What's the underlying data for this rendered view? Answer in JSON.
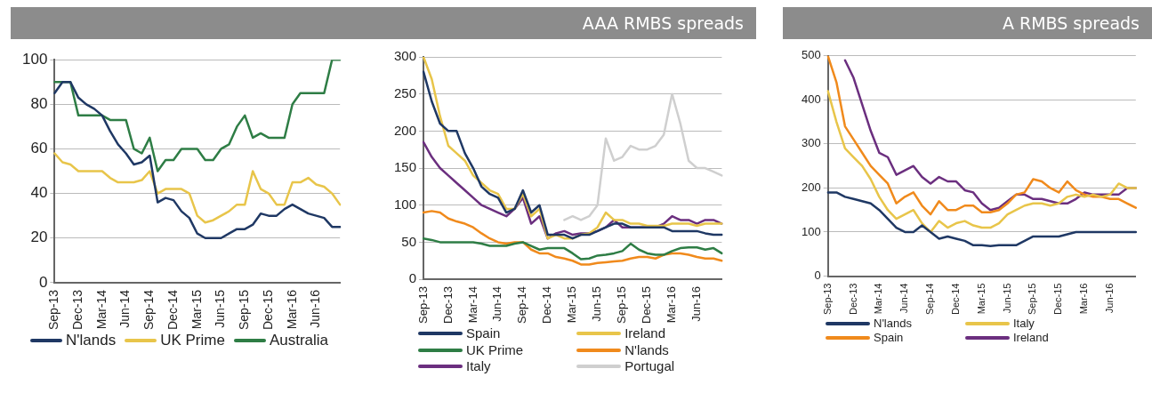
{
  "chart_data": [
    {
      "type": "line",
      "categories": [
        "Sep-13",
        null,
        null,
        "Dec-13",
        null,
        null,
        "Mar-14",
        null,
        null,
        "Jun-14",
        null,
        null,
        "Sep-14",
        null,
        null,
        "Dec-14",
        null,
        null,
        "Mar-15",
        null,
        null,
        "Jun-15",
        null,
        null,
        "Sep-15",
        null,
        null,
        "Dec-15",
        null,
        null,
        "Mar-16",
        null,
        null,
        "Jun-16",
        null,
        null,
        null
      ],
      "series": [
        {
          "name": "N'lands",
          "color": "#1f3864",
          "values": [
            85,
            90,
            90,
            83,
            80,
            78,
            75,
            68,
            62,
            58,
            53,
            54,
            57,
            36,
            38,
            37,
            32,
            29,
            22,
            20,
            20,
            20,
            22,
            24,
            24,
            26,
            31,
            30,
            30,
            33,
            35,
            33,
            31,
            30,
            29,
            25,
            25
          ]
        },
        {
          "name": "UK Prime",
          "color": "#e8c54a",
          "values": [
            58,
            54,
            53,
            50,
            50,
            50,
            50,
            47,
            45,
            45,
            45,
            46,
            50,
            40,
            42,
            42,
            42,
            40,
            30,
            27,
            28,
            30,
            32,
            35,
            35,
            50,
            42,
            40,
            35,
            35,
            45,
            45,
            47,
            44,
            43,
            40,
            35
          ]
        },
        {
          "name": "Australia",
          "color": "#2e7d45",
          "values": [
            90,
            90,
            90,
            75,
            75,
            75,
            75,
            73,
            73,
            73,
            60,
            58,
            65,
            50,
            55,
            55,
            60,
            60,
            60,
            55,
            55,
            60,
            62,
            70,
            75,
            65,
            67,
            65,
            65,
            65,
            80,
            85,
            85,
            85,
            85,
            100,
            100
          ]
        }
      ],
      "ylim": [
        0,
        100
      ],
      "yticks": [
        0,
        20,
        40,
        60,
        80,
        100
      ],
      "grid": "y",
      "legend": "bottom",
      "marker": "none",
      "line_style": "solid"
    },
    {
      "type": "line",
      "title": "AAA RMBS spreads",
      "categories": [
        "Sep-13",
        null,
        null,
        "Dec-13",
        null,
        null,
        "Mar-14",
        null,
        null,
        "Jun-14",
        null,
        null,
        "Sep-14",
        null,
        null,
        "Dec-14",
        null,
        null,
        "Mar-15",
        null,
        null,
        "Jun-15",
        null,
        null,
        "Sep-15",
        null,
        null,
        "Dec-15",
        null,
        null,
        "Mar-16",
        null,
        null,
        "Jun-16",
        null,
        null,
        null
      ],
      "series": [
        {
          "name": "Spain",
          "color": "#1f3864",
          "values": [
            280,
            240,
            210,
            200,
            200,
            170,
            150,
            125,
            115,
            110,
            90,
            95,
            120,
            90,
            100,
            60,
            60,
            60,
            55,
            60,
            60,
            65,
            70,
            75,
            75,
            70,
            70,
            70,
            70,
            70,
            65,
            65,
            65,
            65,
            62,
            60,
            60
          ]
        },
        {
          "name": "Ireland",
          "color": "#e8c54a",
          "values": [
            300,
            270,
            220,
            180,
            170,
            160,
            140,
            130,
            120,
            115,
            95,
            95,
            115,
            85,
            95,
            55,
            60,
            55,
            55,
            60,
            62,
            70,
            90,
            80,
            80,
            75,
            75,
            72,
            72,
            72,
            75,
            75,
            75,
            72,
            75,
            75,
            75
          ]
        },
        {
          "name": "UK Prime",
          "color": "#2e7d45",
          "values": [
            55,
            53,
            50,
            50,
            50,
            50,
            50,
            48,
            45,
            45,
            45,
            48,
            50,
            45,
            40,
            42,
            42,
            42,
            35,
            27,
            28,
            32,
            33,
            35,
            38,
            48,
            40,
            35,
            33,
            33,
            38,
            42,
            43,
            43,
            40,
            42,
            35
          ]
        },
        {
          "name": "N'lands",
          "color": "#f08a1c",
          "values": [
            90,
            92,
            90,
            82,
            78,
            75,
            70,
            62,
            55,
            50,
            48,
            50,
            50,
            40,
            35,
            35,
            30,
            28,
            25,
            20,
            20,
            22,
            23,
            24,
            25,
            28,
            30,
            30,
            28,
            33,
            35,
            35,
            33,
            30,
            28,
            28,
            25
          ]
        },
        {
          "name": "Italy",
          "color": "#6b2f7f",
          "values": [
            185,
            165,
            150,
            140,
            130,
            120,
            110,
            100,
            95,
            90,
            85,
            95,
            110,
            75,
            85,
            55,
            62,
            65,
            60,
            62,
            62,
            65,
            70,
            80,
            70,
            70,
            70,
            70,
            70,
            75,
            85,
            80,
            80,
            75,
            80,
            80,
            75
          ]
        },
        {
          "name": "Portugal",
          "color": "#cfcfcf",
          "values": [
            null,
            null,
            null,
            null,
            null,
            null,
            null,
            null,
            null,
            null,
            null,
            null,
            null,
            null,
            null,
            null,
            null,
            80,
            85,
            80,
            85,
            100,
            190,
            160,
            165,
            180,
            175,
            175,
            180,
            195,
            250,
            210,
            160,
            150,
            150,
            145,
            140
          ]
        }
      ],
      "ylim": [
        0,
        300
      ],
      "yticks": [
        0,
        50,
        100,
        150,
        200,
        250,
        300
      ],
      "grid": "y",
      "legend": "bottom",
      "marker": "none",
      "line_style": "solid"
    },
    {
      "type": "line",
      "title": "A RMBS spreads",
      "categories": [
        "Sep-13",
        null,
        null,
        "Dec-13",
        null,
        null,
        "Mar-14",
        null,
        null,
        "Jun-14",
        null,
        null,
        "Sep-14",
        null,
        null,
        "Dec-14",
        null,
        null,
        "Mar-15",
        null,
        null,
        "Jun-15",
        null,
        null,
        "Sep-15",
        null,
        null,
        "Dec-15",
        null,
        null,
        "Mar-16",
        null,
        null,
        "Jun-16",
        null,
        null,
        null
      ],
      "series": [
        {
          "name": "N'lands",
          "color": "#1f3864",
          "values": [
            190,
            190,
            180,
            175,
            170,
            165,
            150,
            130,
            110,
            100,
            100,
            115,
            100,
            85,
            90,
            85,
            80,
            70,
            70,
            68,
            70,
            70,
            70,
            80,
            90,
            90,
            90,
            90,
            95,
            100,
            100,
            100,
            100,
            100,
            100,
            100,
            100
          ]
        },
        {
          "name": "Italy",
          "color": "#e8c54a",
          "values": [
            420,
            350,
            290,
            270,
            250,
            220,
            180,
            150,
            130,
            140,
            150,
            120,
            100,
            125,
            110,
            120,
            125,
            115,
            110,
            110,
            120,
            140,
            150,
            160,
            165,
            165,
            160,
            165,
            180,
            185,
            180,
            185,
            180,
            185,
            210,
            200,
            200
          ]
        },
        {
          "name": "Spain",
          "color": "#f08a1c",
          "values": [
            500,
            440,
            340,
            310,
            280,
            250,
            230,
            210,
            165,
            180,
            190,
            160,
            140,
            170,
            150,
            150,
            160,
            160,
            145,
            145,
            150,
            165,
            185,
            190,
            220,
            215,
            200,
            190,
            215,
            195,
            185,
            180,
            180,
            175,
            175,
            165,
            155
          ]
        },
        {
          "name": "Ireland",
          "color": "#6b2f7f",
          "values": [
            null,
            null,
            490,
            450,
            390,
            330,
            280,
            270,
            230,
            240,
            250,
            225,
            210,
            225,
            215,
            215,
            195,
            190,
            165,
            150,
            155,
            170,
            185,
            185,
            175,
            175,
            170,
            165,
            165,
            175,
            190,
            185,
            185,
            185,
            185,
            200,
            200
          ]
        }
      ],
      "ylim": [
        0,
        500
      ],
      "yticks": [
        0,
        100,
        200,
        300,
        400,
        500
      ],
      "grid": "y",
      "legend": "bottom",
      "marker": "none",
      "line_style": "solid"
    }
  ]
}
